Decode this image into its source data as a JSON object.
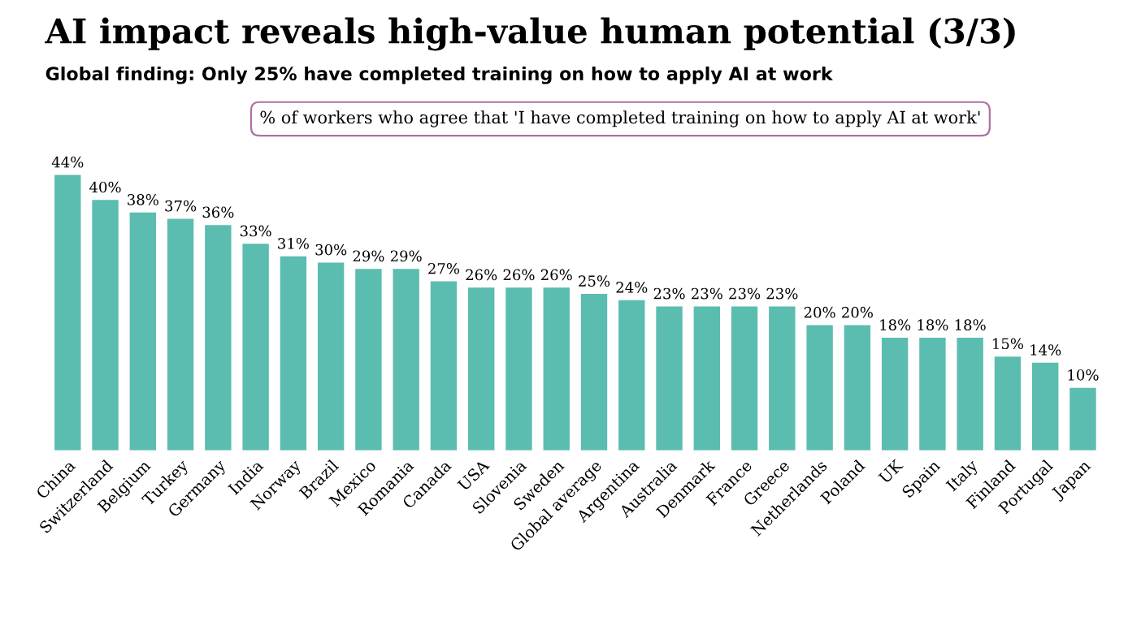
{
  "chart_data": {
    "type": "bar",
    "title": "AI impact reveals high-value human potential (3/3)",
    "subtitle": "Global finding: Only 25% have completed training on how to apply AI at work",
    "annotations": [
      "% of workers who agree that 'I have completed training on how to apply AI at work'"
    ],
    "categories": [
      "China",
      "Switzerland",
      "Belgium",
      "Turkey",
      "Germany",
      "India",
      "Norway",
      "Brazil",
      "Mexico",
      "Romania",
      "Canada",
      "USA",
      "Slovenia",
      "Sweden",
      "Global average",
      "Argentina",
      "Australia",
      "Denmark",
      "France",
      "Greece",
      "Netherlands",
      "Poland",
      "UK",
      "Spain",
      "Italy",
      "Finland",
      "Portugal",
      "Japan"
    ],
    "values": [
      44,
      40,
      38,
      37,
      36,
      33,
      31,
      30,
      29,
      29,
      27,
      26,
      26,
      26,
      25,
      24,
      23,
      23,
      23,
      23,
      20,
      20,
      18,
      18,
      18,
      15,
      14,
      10
    ],
    "value_labels": [
      "44%",
      "40%",
      "38%",
      "37%",
      "36%",
      "33%",
      "31%",
      "30%",
      "29%",
      "29%",
      "27%",
      "26%",
      "26%",
      "26%",
      "25%",
      "24%",
      "23%",
      "23%",
      "23%",
      "23%",
      "20%",
      "20%",
      "18%",
      "18%",
      "18%",
      "15%",
      "14%",
      "10%"
    ],
    "color": "#5bbcb0"
  }
}
